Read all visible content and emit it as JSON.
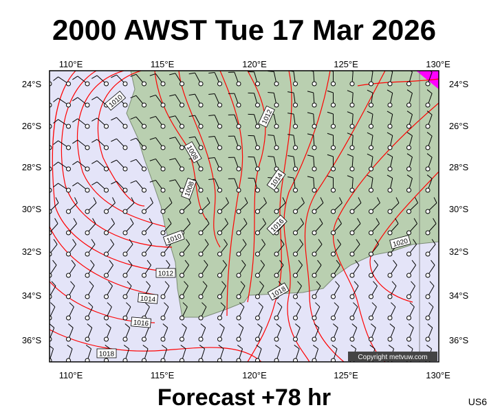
{
  "header": {
    "title": "2000 AWST Tue 17 Mar 2026"
  },
  "map": {
    "longitudes": [
      "110°E",
      "115°E",
      "120°E",
      "125°E",
      "130°E"
    ],
    "latitudes": [
      "24°S",
      "26°S",
      "28°S",
      "30°S",
      "32°S",
      "34°S",
      "36°S"
    ],
    "isobar_labels": [
      "1010",
      "1012",
      "1008",
      "1008",
      "1014",
      "1016",
      "1010",
      "1012",
      "1014",
      "1016",
      "1018",
      "1018",
      "1020"
    ],
    "credit": "Copyright metvuw.com"
  },
  "footer": {
    "caption": "Forecast +78 hr",
    "code": "US6"
  }
}
